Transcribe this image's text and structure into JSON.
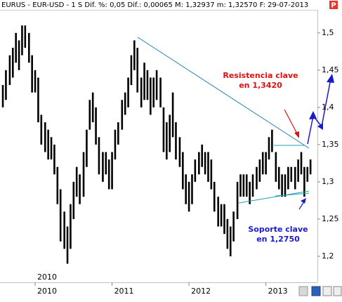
{
  "chart_data": {
    "type": "range",
    "header": "EURUS - EUR-USD - 1 S  Dif. %: 0,05  Dif.: 0,00065  M: 1,32937  m: 1,32570  F: 29-07-2013",
    "header_badge": "P",
    "period_label": "2010",
    "annotations": [
      "Resistencia clave",
      "en 1,3420",
      "Soporte clave",
      "en 1,2750"
    ],
    "color": "#000000",
    "xlim": [
      2009.543,
      2013.67
    ],
    "xticks": [
      2010,
      2011,
      2012,
      2013
    ],
    "ylim": [
      1.165,
      1.531
    ],
    "yticks": [
      {
        "value": 1.2,
        "label": "1,2"
      },
      {
        "value": 1.25,
        "label": "1,25"
      },
      {
        "value": 1.3,
        "label": "1,3"
      },
      {
        "value": 1.35,
        "label": "1,35"
      },
      {
        "value": 1.4,
        "label": "1,4"
      },
      {
        "value": 1.45,
        "label": "1,45"
      },
      {
        "value": 1.5,
        "label": "1,5"
      }
    ],
    "x": [
      2009.58,
      2009.62,
      2009.67,
      2009.71,
      2009.75,
      2009.79,
      2009.83,
      2009.87,
      2009.92,
      2009.96,
      2010.0,
      2010.04,
      2010.08,
      2010.13,
      2010.17,
      2010.21,
      2010.25,
      2010.29,
      2010.33,
      2010.38,
      2010.42,
      2010.46,
      2010.5,
      2010.54,
      2010.58,
      2010.63,
      2010.67,
      2010.71,
      2010.75,
      2010.79,
      2010.83,
      2010.88,
      2010.92,
      2010.96,
      2011.0,
      2011.04,
      2011.08,
      2011.13,
      2011.17,
      2011.21,
      2011.25,
      2011.29,
      2011.33,
      2011.38,
      2011.42,
      2011.46,
      2011.5,
      2011.54,
      2011.58,
      2011.63,
      2011.67,
      2011.71,
      2011.75,
      2011.79,
      2011.83,
      2011.88,
      2011.92,
      2011.96,
      2012.0,
      2012.04,
      2012.08,
      2012.13,
      2012.17,
      2012.21,
      2012.25,
      2012.29,
      2012.33,
      2012.38,
      2012.42,
      2012.46,
      2012.5,
      2012.54,
      2012.58,
      2012.63,
      2012.67,
      2012.71,
      2012.75,
      2012.79,
      2012.83,
      2012.88,
      2012.92,
      2012.96,
      2013.0,
      2013.04,
      2013.08,
      2013.13,
      2013.17,
      2013.21,
      2013.25,
      2013.29,
      2013.33,
      2013.38,
      2013.42,
      2013.46,
      2013.5,
      2013.54,
      2013.58
    ],
    "low": [
      1.4,
      1.41,
      1.43,
      1.44,
      1.46,
      1.45,
      1.47,
      1.48,
      1.46,
      1.42,
      1.42,
      1.38,
      1.35,
      1.34,
      1.33,
      1.33,
      1.31,
      1.27,
      1.22,
      1.21,
      1.19,
      1.21,
      1.25,
      1.28,
      1.27,
      1.28,
      1.32,
      1.37,
      1.38,
      1.35,
      1.31,
      1.3,
      1.31,
      1.29,
      1.29,
      1.33,
      1.35,
      1.37,
      1.39,
      1.4,
      1.43,
      1.45,
      1.42,
      1.4,
      1.41,
      1.41,
      1.39,
      1.4,
      1.41,
      1.4,
      1.34,
      1.33,
      1.34,
      1.36,
      1.33,
      1.32,
      1.29,
      1.27,
      1.26,
      1.27,
      1.3,
      1.31,
      1.32,
      1.31,
      1.3,
      1.29,
      1.26,
      1.24,
      1.24,
      1.23,
      1.21,
      1.2,
      1.22,
      1.25,
      1.28,
      1.28,
      1.28,
      1.27,
      1.28,
      1.29,
      1.3,
      1.31,
      1.31,
      1.33,
      1.34,
      1.3,
      1.29,
      1.28,
      1.28,
      1.29,
      1.3,
      1.29,
      1.3,
      1.31,
      1.28,
      1.3,
      1.31
    ],
    "high": [
      1.43,
      1.45,
      1.47,
      1.48,
      1.5,
      1.49,
      1.51,
      1.51,
      1.5,
      1.47,
      1.45,
      1.44,
      1.39,
      1.38,
      1.37,
      1.36,
      1.35,
      1.32,
      1.29,
      1.26,
      1.24,
      1.27,
      1.3,
      1.32,
      1.31,
      1.34,
      1.37,
      1.41,
      1.42,
      1.4,
      1.36,
      1.34,
      1.34,
      1.33,
      1.34,
      1.37,
      1.38,
      1.41,
      1.42,
      1.44,
      1.47,
      1.49,
      1.48,
      1.44,
      1.46,
      1.45,
      1.44,
      1.44,
      1.45,
      1.44,
      1.4,
      1.38,
      1.39,
      1.42,
      1.38,
      1.36,
      1.34,
      1.31,
      1.3,
      1.31,
      1.33,
      1.34,
      1.35,
      1.34,
      1.34,
      1.33,
      1.3,
      1.28,
      1.27,
      1.27,
      1.25,
      1.24,
      1.26,
      1.3,
      1.31,
      1.31,
      1.31,
      1.3,
      1.31,
      1.32,
      1.33,
      1.34,
      1.34,
      1.36,
      1.37,
      1.34,
      1.32,
      1.31,
      1.31,
      1.32,
      1.32,
      1.32,
      1.33,
      1.34,
      1.32,
      1.32,
      1.33
    ]
  }
}
